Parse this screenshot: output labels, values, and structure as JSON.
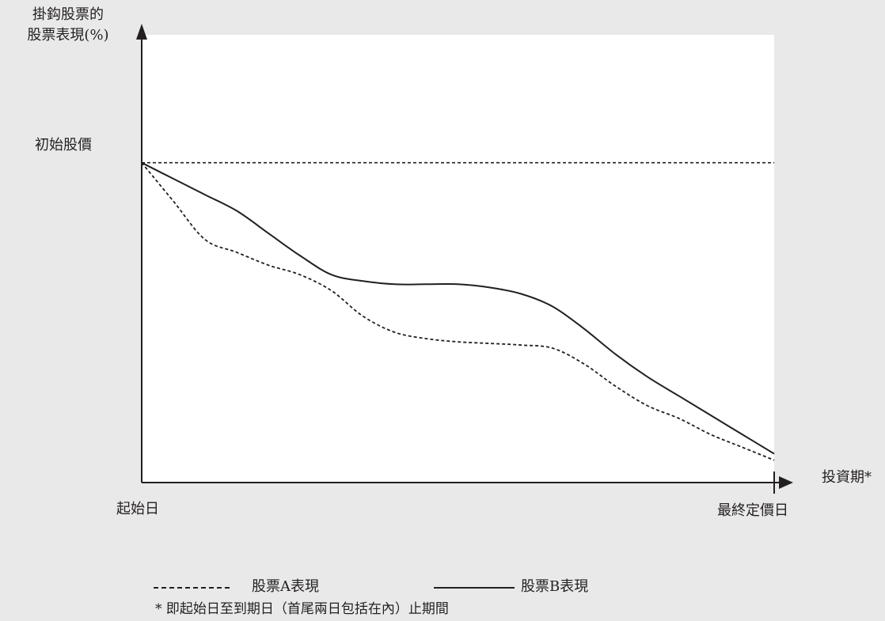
{
  "chart_data": {
    "type": "line",
    "ylabel_line1": "掛鈎股票的",
    "ylabel_line2": "股票表現(%)",
    "xlabel": "投資期*",
    "y_reference_label": "初始股價",
    "x_start_label": "起始日",
    "x_end_label": "最終定價日",
    "reference_level": 100,
    "ylim": [
      0,
      140
    ],
    "xlim": [
      0,
      100
    ],
    "x": [
      0,
      5,
      10,
      15,
      20,
      25,
      30,
      35,
      40,
      45,
      50,
      55,
      60,
      65,
      70,
      75,
      80,
      85,
      90,
      95,
      100
    ],
    "series": [
      {
        "name": "股票A表現",
        "style": "dashed",
        "values": [
          100,
          88,
          76,
          72,
          68,
          65,
          60,
          52,
          47,
          45,
          44,
          43.5,
          43,
          42,
          37,
          30,
          24,
          20,
          15,
          11,
          7
        ]
      },
      {
        "name": "股票B表現",
        "style": "solid",
        "values": [
          100,
          95,
          90,
          85,
          78,
          71,
          65,
          63,
          62,
          62,
          62,
          61,
          59,
          55,
          48,
          40,
          33,
          27,
          21,
          15,
          9
        ]
      }
    ],
    "legend": {
      "a_label": "股票A表現",
      "b_label": "股票B表現"
    },
    "footnote": "* 即起始日至到期日（首尾兩日包括在內）止期間"
  },
  "colors": {
    "background": "#e9e9ea",
    "plot_area": "#ffffff",
    "ink": "#231f20"
  }
}
